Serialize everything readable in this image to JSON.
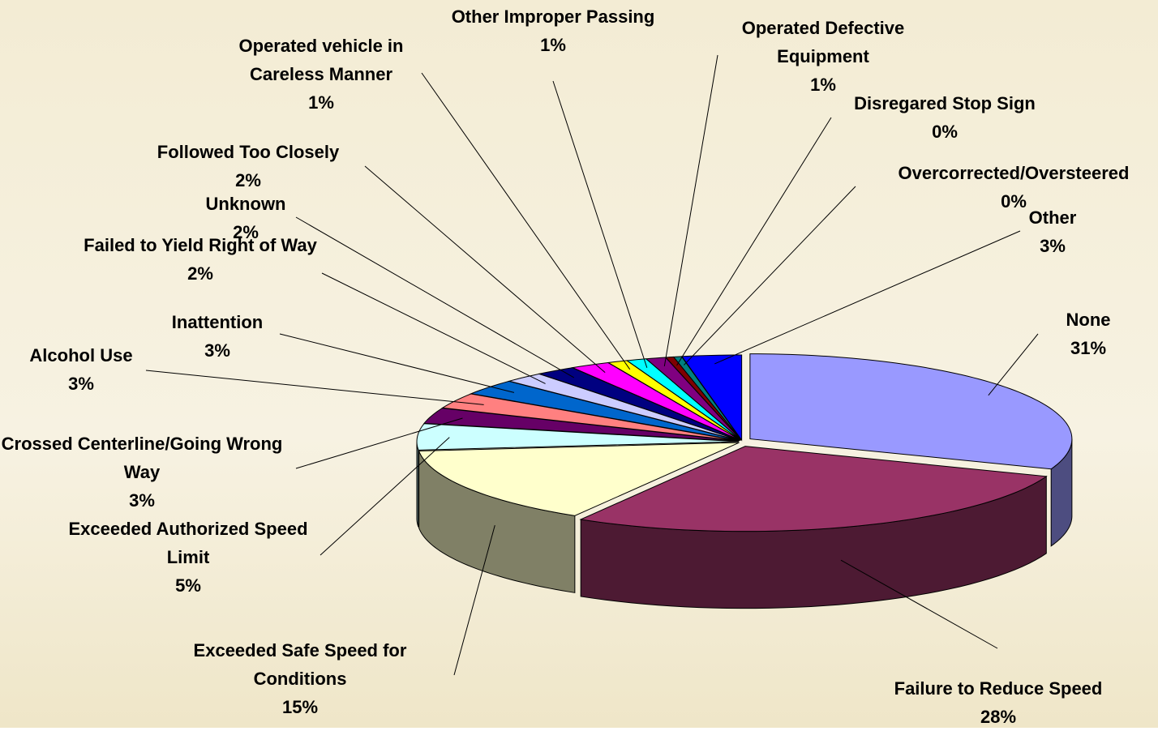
{
  "chart_data": {
    "type": "pie3d",
    "categories": [
      "None",
      "Failure to Reduce Speed",
      "Exceeded Safe Speed for Conditions",
      "Exceeded Authorized Speed Limit",
      "Crossed Centerline/Going Wrong Way",
      "Alcohol Use",
      "Inattention",
      "Failed to Yield Right of Way",
      "Unknown",
      "Followed Too Closely",
      "Operated vehicle in Careless Manner",
      "Other Improper Passing",
      "Operated Defective Equipment",
      "Disregared Stop Sign",
      "Overcorrected/Oversteered",
      "Other"
    ],
    "values": [
      31,
      28,
      15,
      5,
      3,
      3,
      3,
      2,
      2,
      2,
      1,
      1,
      1,
      0.4,
      0.4,
      3
    ],
    "value_labels": [
      "31%",
      "28%",
      "15%",
      "5%",
      "3%",
      "3%",
      "3%",
      "2%",
      "2%",
      "2%",
      "1%",
      "1%",
      "1%",
      "0%",
      "0%",
      "3%"
    ],
    "colors": [
      "#9999ff",
      "#993366",
      "#ffffcc",
      "#ccffff",
      "#660066",
      "#ff8080",
      "#0066cc",
      "#ccccff",
      "#000080",
      "#ff00ff",
      "#ffff00",
      "#00ffff",
      "#800080",
      "#800000",
      "#008080",
      "#0000ff"
    ]
  }
}
